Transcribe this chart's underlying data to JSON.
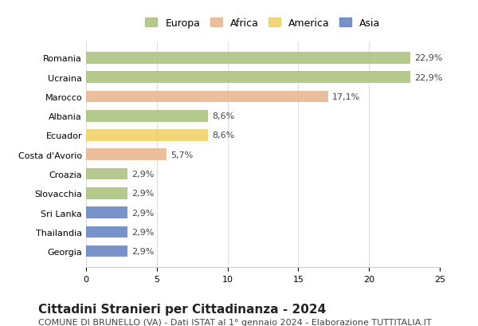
{
  "categories": [
    "Romania",
    "Ucraina",
    "Marocco",
    "Albania",
    "Ecuador",
    "Costa d'Avorio",
    "Croazia",
    "Slovacchia",
    "Sri Lanka",
    "Thailandia",
    "Georgia"
  ],
  "values": [
    22.9,
    22.9,
    17.1,
    8.6,
    8.6,
    5.7,
    2.9,
    2.9,
    2.9,
    2.9,
    2.9
  ],
  "labels": [
    "22,9%",
    "22,9%",
    "17,1%",
    "8,6%",
    "8,6%",
    "5,7%",
    "2,9%",
    "2,9%",
    "2,9%",
    "2,9%",
    "2,9%"
  ],
  "continent": [
    "Europa",
    "Europa",
    "Africa",
    "Europa",
    "America",
    "Africa",
    "Europa",
    "Europa",
    "Asia",
    "Asia",
    "Asia"
  ],
  "colors": {
    "Europa": "#a8c07a",
    "Africa": "#e8b48a",
    "America": "#f0d060",
    "Asia": "#6080c0"
  },
  "legend_order": [
    "Europa",
    "Africa",
    "America",
    "Asia"
  ],
  "xlim": [
    0,
    25
  ],
  "xticks": [
    0,
    5,
    10,
    15,
    20,
    25
  ],
  "title": "Cittadini Stranieri per Cittadinanza - 2024",
  "subtitle": "COMUNE DI BRUNELLO (VA) - Dati ISTAT al 1° gennaio 2024 - Elaborazione TUTTITALIA.IT",
  "background_color": "#ffffff",
  "grid_color": "#dddddd",
  "title_fontsize": 11,
  "subtitle_fontsize": 8,
  "bar_label_fontsize": 8,
  "tick_fontsize": 8,
  "legend_fontsize": 9
}
